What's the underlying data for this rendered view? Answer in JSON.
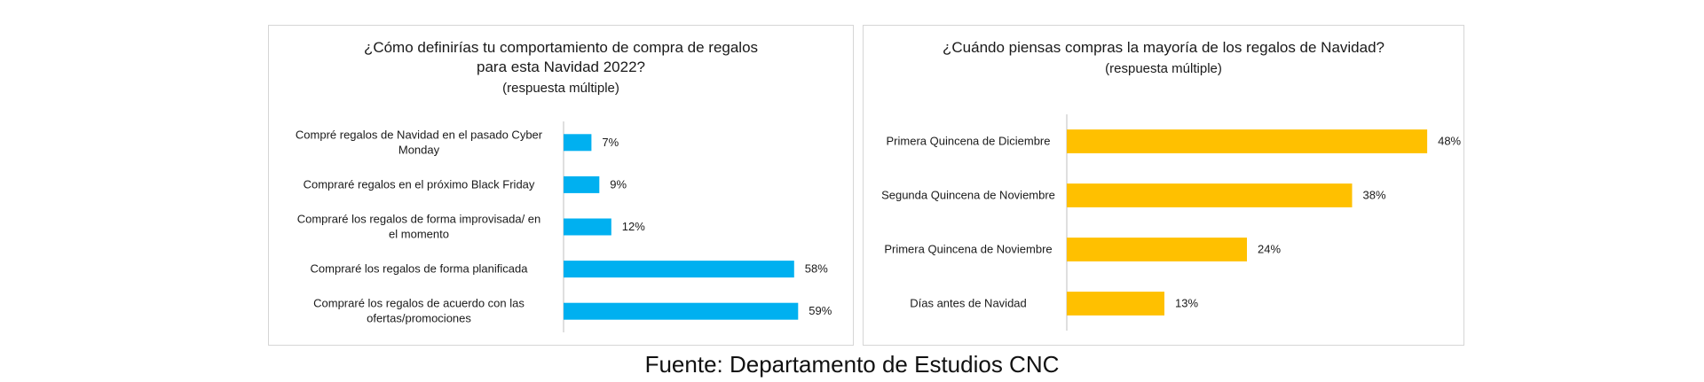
{
  "chart_data": [
    {
      "type": "bar",
      "orientation": "horizontal",
      "title_lines": [
        "¿Cómo definirías tu comportamiento de compra de regalos",
        "para esta Navidad 2022?"
      ],
      "subtitle": "(respuesta múltiple)",
      "color": "#00B0F0",
      "categories": [
        [
          "Compré regalos de Navidad en el pasado Cyber",
          "Monday"
        ],
        [
          "Compraré regalos en el próximo Black Friday"
        ],
        [
          "Compraré los regalos de forma improvisada/ en",
          "el momento"
        ],
        [
          "Compraré los regalos de forma planificada"
        ],
        [
          "Compraré los regalos de acuerdo con las",
          "ofertas/promociones"
        ]
      ],
      "values": [
        7,
        9,
        12,
        58,
        59
      ],
      "labels": [
        "7%",
        "9%",
        "12%",
        "58%",
        "59%"
      ],
      "xlim": [
        0,
        100
      ],
      "grid": false,
      "legend": "none"
    },
    {
      "type": "bar",
      "orientation": "horizontal",
      "title_lines": [
        "¿Cuándo piensas compras la mayoría de los regalos de Navidad?"
      ],
      "subtitle": "(respuesta múltiple)",
      "color": "#FFC000",
      "categories": [
        [
          "Primera Quincena de Diciembre"
        ],
        [
          "Segunda Quincena de Noviembre"
        ],
        [
          "Primera Quincena de Noviembre"
        ],
        [
          "Días antes de Navidad"
        ]
      ],
      "values": [
        48,
        38,
        24,
        13
      ],
      "labels": [
        "48%",
        "38%",
        "24%",
        "13%"
      ],
      "xlim": [
        0,
        100
      ],
      "grid": false,
      "legend": "none"
    }
  ],
  "source": "Fuente: Departamento de Estudios CNC"
}
